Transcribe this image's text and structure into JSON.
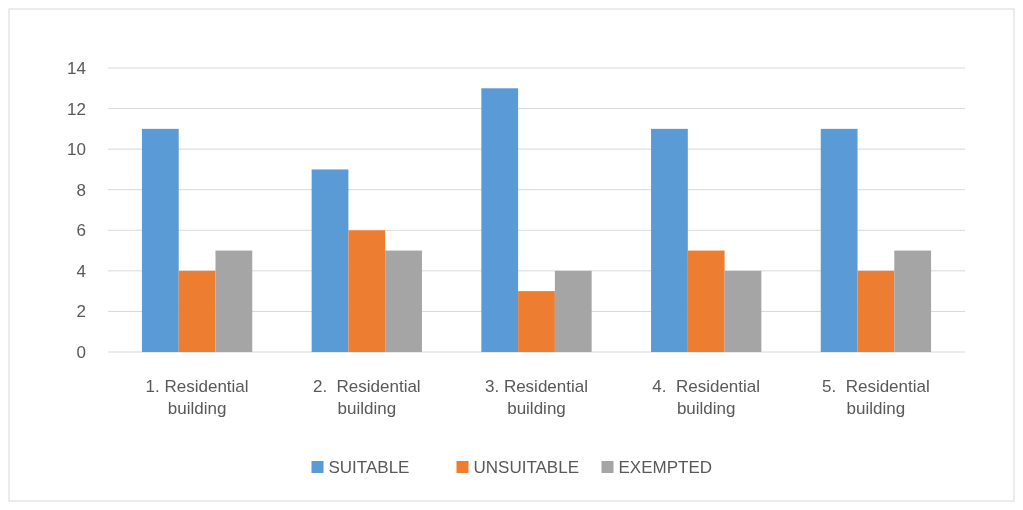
{
  "chart_data": {
    "type": "bar",
    "categories": [
      "1. Residential building",
      "2.  Residential building",
      "3. Residential building",
      "4.  Residential building",
      "5.  Residential building"
    ],
    "series": [
      {
        "name": "SUITABLE",
        "color": "#5b9bd5",
        "values": [
          11,
          9,
          13,
          11,
          11
        ]
      },
      {
        "name": "UNSUITABLE",
        "color": "#ed7d31",
        "values": [
          4,
          6,
          3,
          5,
          4
        ]
      },
      {
        "name": "EXEMPTED",
        "color": "#a5a5a5",
        "values": [
          5,
          5,
          4,
          4,
          5
        ]
      }
    ],
    "ylim": [
      0,
      14
    ],
    "yticks": [
      0,
      2,
      4,
      6,
      8,
      10,
      12,
      14
    ],
    "grid": "y",
    "legend": "bottom"
  }
}
